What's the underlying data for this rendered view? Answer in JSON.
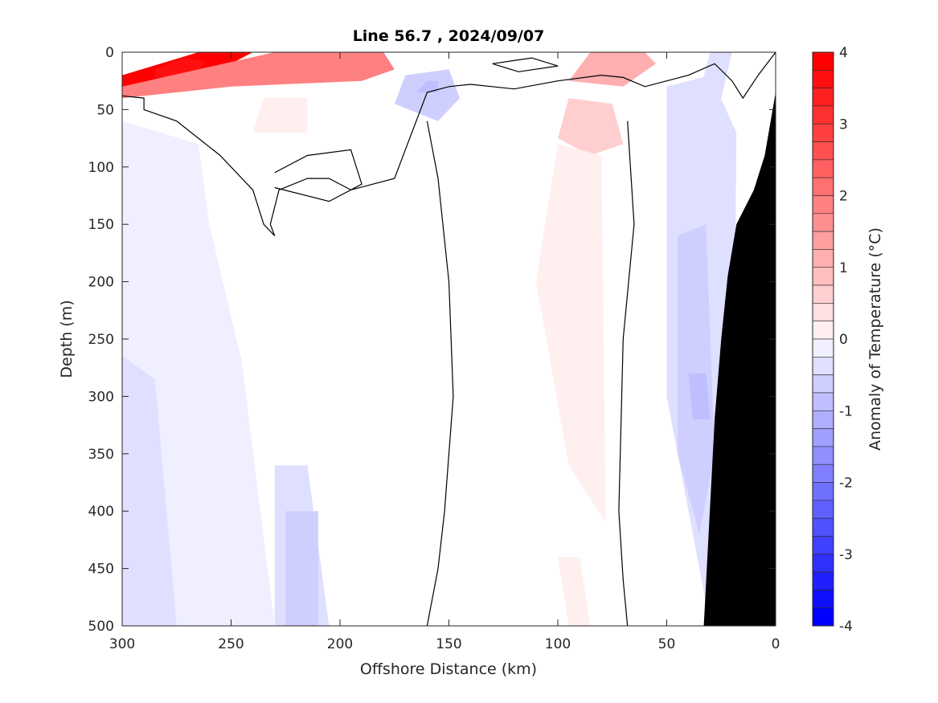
{
  "chart_data": {
    "type": "heatmap",
    "title": "Line 56.7 , 2024/09/07",
    "xlabel": "Offshore Distance (km)",
    "ylabel": "Depth (m)",
    "colorbar_label": "Anomaly of Temperature (°C)",
    "xlim": [
      300,
      0
    ],
    "ylim": [
      0,
      500
    ],
    "x_ticks": [
      300,
      250,
      200,
      150,
      100,
      50,
      0
    ],
    "y_ticks": [
      0,
      50,
      100,
      150,
      200,
      250,
      300,
      350,
      400,
      450,
      500
    ],
    "colorbar_ticks": [
      4,
      3,
      2,
      1,
      0,
      -1,
      -2,
      -3,
      -4
    ],
    "clim": [
      -4,
      4
    ],
    "contour_step": 0.25,
    "colors": {
      "warm": "#ff0000",
      "cold": "#0000ff",
      "neutral": "#ffffff",
      "land": "#000000"
    },
    "anomaly_patches": [
      {
        "x": [
          300,
          265,
          240,
          250,
          275,
          300
        ],
        "y": [
          20,
          0,
          0,
          10,
          30,
          40
        ],
        "value": 4.0
      },
      {
        "x": [
          285,
          272,
          262,
          268,
          285
        ],
        "y": [
          15,
          5,
          8,
          25,
          22
        ],
        "value": 3.8
      },
      {
        "x": [
          300,
          230,
          180,
          175,
          190,
          250,
          300
        ],
        "y": [
          30,
          0,
          0,
          15,
          25,
          30,
          40
        ],
        "value": 2.0
      },
      {
        "x": [
          235,
          215,
          215,
          240
        ],
        "y": [
          40,
          40,
          70,
          70
        ],
        "value": 0.25
      },
      {
        "x": [
          85,
          60,
          55,
          70,
          95
        ],
        "y": [
          0,
          0,
          10,
          30,
          25
        ],
        "value": 1.25
      },
      {
        "x": [
          95,
          75,
          70,
          85,
          100
        ],
        "y": [
          40,
          45,
          80,
          90,
          75
        ],
        "value": 0.75
      },
      {
        "x": [
          100,
          80,
          78,
          95,
          110
        ],
        "y": [
          80,
          90,
          410,
          360,
          200
        ],
        "value": 0.25
      },
      {
        "x": [
          100,
          90,
          85,
          95
        ],
        "y": [
          440,
          440,
          500,
          500
        ],
        "value": 0.25
      },
      {
        "x": [
          170,
          150,
          145,
          155,
          175
        ],
        "y": [
          20,
          15,
          40,
          60,
          45
        ],
        "value": -0.75
      },
      {
        "x": [
          160,
          155,
          155,
          165
        ],
        "y": [
          25,
          25,
          35,
          35
        ],
        "value": -1.0
      },
      {
        "x": [
          300,
          265,
          260,
          245,
          230,
          300
        ],
        "y": [
          60,
          80,
          150,
          270,
          500,
          500
        ],
        "value": -0.25
      },
      {
        "x": [
          230,
          215,
          205,
          215,
          230
        ],
        "y": [
          360,
          360,
          500,
          500,
          500
        ],
        "value": -0.5
      },
      {
        "x": [
          225,
          210,
          210,
          225
        ],
        "y": [
          400,
          400,
          500,
          500
        ],
        "value": -0.75
      },
      {
        "x": [
          300,
          285,
          275,
          300
        ],
        "y": [
          265,
          285,
          500,
          500
        ],
        "value": -0.5
      },
      {
        "x": [
          50,
          30,
          18,
          20,
          30,
          50
        ],
        "y": [
          30,
          20,
          70,
          500,
          500,
          300
        ],
        "value": -0.5
      },
      {
        "x": [
          45,
          32,
          28,
          35,
          45
        ],
        "y": [
          160,
          150,
          350,
          420,
          350
        ],
        "value": -0.75
      },
      {
        "x": [
          40,
          32,
          30,
          38
        ],
        "y": [
          280,
          280,
          320,
          320
        ],
        "value": -1.0
      },
      {
        "x": [
          30,
          20,
          25,
          35
        ],
        "y": [
          0,
          0,
          40,
          35
        ],
        "value": -0.5
      }
    ],
    "zero_contours": [
      {
        "x": [
          300,
          290,
          290,
          275,
          255,
          240,
          235,
          230,
          232,
          230,
          228,
          215,
          205,
          195,
          175,
          160,
          150,
          140,
          120,
          100,
          80,
          70,
          60,
          40,
          28,
          20,
          15,
          8,
          0
        ],
        "y": [
          38,
          40,
          50,
          60,
          90,
          120,
          150,
          160,
          150,
          135,
          120,
          110,
          110,
          120,
          110,
          35,
          30,
          28,
          32,
          25,
          20,
          22,
          30,
          20,
          10,
          25,
          40,
          20,
          0
        ]
      },
      {
        "x": [
          160,
          155,
          150,
          148,
          152,
          155,
          160
        ],
        "y": [
          60,
          110,
          200,
          300,
          400,
          450,
          500
        ]
      },
      {
        "x": [
          68,
          65,
          70,
          72,
          70,
          68
        ],
        "y": [
          60,
          150,
          250,
          400,
          460,
          500
        ]
      },
      {
        "x": [
          230,
          215,
          195,
          190,
          205,
          230
        ],
        "y": [
          105,
          90,
          85,
          115,
          130,
          118
        ]
      },
      {
        "x": [
          130,
          112,
          100,
          118,
          130
        ],
        "y": [
          10,
          5,
          12,
          17,
          10
        ]
      }
    ],
    "land_mask": {
      "x": [
        33,
        28,
        25,
        22,
        18,
        10,
        5,
        0,
        0
      ],
      "y": [
        500,
        320,
        250,
        195,
        150,
        120,
        90,
        35,
        500
      ]
    }
  }
}
